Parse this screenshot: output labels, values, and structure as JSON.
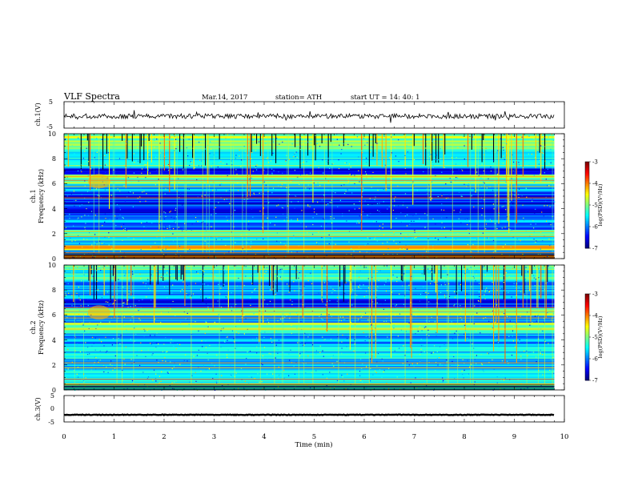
{
  "header": {
    "title": "VLF  Spectra",
    "date": "Mar.14, 2017",
    "station": "station= ATH",
    "start": "start  UT  =   14: 40: 1"
  },
  "chart_data": [
    {
      "type": "line",
      "ylabel": "ch.1(V)",
      "ylim": [
        -5,
        5
      ],
      "y_ticks": [
        "5",
        "-5"
      ],
      "x_range": [
        0,
        10
      ],
      "data_end_min": 9.8,
      "baseline": -0.5,
      "color": "#000000"
    },
    {
      "type": "heatmap",
      "ylabel": "ch.1\nFrequency  (kHz)",
      "ylim": [
        0,
        10
      ],
      "y_ticks": [
        "0",
        "2",
        "4",
        "6",
        "8",
        "10"
      ],
      "x_range": [
        0,
        10
      ],
      "data_end_min": 9.8,
      "colorbar": {
        "label": "log(PSD)(V²/Hz)",
        "ticks": [
          "-3",
          "-4",
          "-5",
          "-6",
          "-7"
        ],
        "range": [
          -7,
          -3
        ]
      },
      "bands": [
        {
          "from": 0,
          "to": 0.35,
          "value": -3.6
        },
        {
          "from": 0.35,
          "to": 0.7,
          "value": -5.8
        },
        {
          "from": 0.7,
          "to": 1.1,
          "value": -4.3
        },
        {
          "from": 1.1,
          "to": 1.6,
          "value": -5.6
        },
        {
          "from": 1.6,
          "to": 2.4,
          "value": -5.3
        },
        {
          "from": 2.4,
          "to": 3.2,
          "value": -6.0
        },
        {
          "from": 3.2,
          "to": 4.6,
          "value": -6.4
        },
        {
          "from": 4.6,
          "to": 5.4,
          "value": -6.3
        },
        {
          "from": 5.4,
          "to": 6.0,
          "value": -5.7
        },
        {
          "from": 6.0,
          "to": 6.8,
          "value": -5.0
        },
        {
          "from": 6.8,
          "to": 7.3,
          "value": -6.5
        },
        {
          "from": 7.3,
          "to": 8.6,
          "value": -5.4
        },
        {
          "from": 8.6,
          "to": 10,
          "value": -5.0
        }
      ]
    },
    {
      "type": "heatmap",
      "ylabel": "ch.2\nFrequency  (kHz)",
      "ylim": [
        0,
        10
      ],
      "y_ticks": [
        "0",
        "2",
        "4",
        "6",
        "8",
        "10"
      ],
      "x_range": [
        0,
        10
      ],
      "data_end_min": 9.8,
      "colorbar": {
        "label": "log(PSD)(V²/Hz)",
        "ticks": [
          "-3",
          "-4",
          "-5",
          "-6",
          "-7"
        ],
        "range": [
          -7,
          -3
        ]
      },
      "bands": [
        {
          "from": 0,
          "to": 0.4,
          "value": -5.5
        },
        {
          "from": 0.4,
          "to": 1.4,
          "value": -5.4
        },
        {
          "from": 1.4,
          "to": 2.6,
          "value": -5.6
        },
        {
          "from": 2.6,
          "to": 3.6,
          "value": -5.5
        },
        {
          "from": 3.6,
          "to": 4.6,
          "value": -5.9
        },
        {
          "from": 4.6,
          "to": 5.4,
          "value": -5.1
        },
        {
          "from": 5.4,
          "to": 6.0,
          "value": -5.8
        },
        {
          "from": 6.0,
          "to": 6.6,
          "value": -5.0
        },
        {
          "from": 6.6,
          "to": 7.4,
          "value": -6.3
        },
        {
          "from": 7.4,
          "to": 8.8,
          "value": -5.8
        },
        {
          "from": 8.8,
          "to": 10,
          "value": -5.3
        }
      ]
    },
    {
      "type": "line",
      "ylabel": "ch.3(V)",
      "ylim": [
        -5,
        5
      ],
      "y_ticks": [
        "5",
        "0",
        "-5"
      ],
      "x_range": [
        0,
        10
      ],
      "data_end_min": 9.8,
      "baseline": -2.3,
      "color": "#000000"
    }
  ],
  "x_axis": {
    "label": "Time  (min)",
    "ticks": [
      "0",
      "1",
      "2",
      "3",
      "4",
      "5",
      "6",
      "7",
      "8",
      "9",
      "10"
    ]
  }
}
